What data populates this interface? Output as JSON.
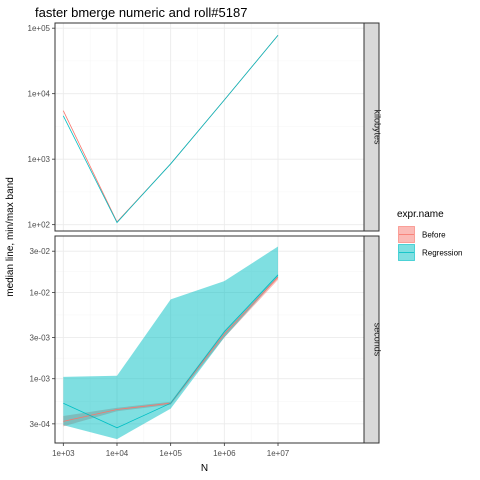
{
  "chart_data": {
    "type": "line",
    "title": "faster bmerge numeric and roll#5187",
    "xlabel": "N",
    "ylabel": "median line, min/max band",
    "x_scale": "log10",
    "x_ticks": [
      1000,
      10000,
      100000,
      1000000,
      10000000
    ],
    "x_tick_labels": [
      "1e+03",
      "1e+04",
      "1e+05",
      "1e+06",
      "1e+07"
    ],
    "xlim": [
      700,
      400000000
    ],
    "legend": {
      "title": "expr.name",
      "position": "right",
      "entries": [
        {
          "name": "Before",
          "color": "#F8766D"
        },
        {
          "name": "Regression",
          "color": "#00BFC4"
        }
      ]
    },
    "facets": [
      {
        "strip": "kilobytes",
        "y_scale": "log10",
        "ylim": [
          80,
          120000
        ],
        "y_ticks": [
          100,
          1000,
          10000,
          100000
        ],
        "y_tick_labels": [
          "1e+02",
          "1e+03",
          "1e+04",
          "1e+05"
        ],
        "series": [
          {
            "name": "Before",
            "x": [
              1000,
              10000,
              100000,
              1000000,
              10000000
            ],
            "median": [
              5500,
              110,
              850,
              8000,
              78000
            ],
            "min": [
              5500,
              110,
              850,
              8000,
              78000
            ],
            "max": [
              5500,
              110,
              850,
              8000,
              78000
            ]
          },
          {
            "name": "Regression",
            "x": [
              1000,
              10000,
              100000,
              1000000,
              10000000
            ],
            "median": [
              4600,
              108,
              850,
              8000,
              78000
            ],
            "min": [
              4600,
              108,
              850,
              8000,
              78000
            ],
            "max": [
              4600,
              108,
              850,
              8000,
              78000
            ]
          }
        ]
      },
      {
        "strip": "seconds",
        "y_scale": "log10",
        "ylim": [
          0.00018,
          0.045
        ],
        "y_ticks": [
          0.0003,
          0.001,
          0.003,
          0.01,
          0.03
        ],
        "y_tick_labels": [
          "3e-04",
          "1e-03",
          "3e-03",
          "1e-02",
          "3e-02"
        ],
        "series": [
          {
            "name": "Before",
            "x": [
              1000,
              10000,
              100000,
              1000000,
              10000000
            ],
            "median": [
              0.00032,
              0.00044,
              0.00052,
              0.0033,
              0.015
            ],
            "min": [
              0.00028,
              0.00042,
              0.0005,
              0.003,
              0.014
            ],
            "max": [
              0.00037,
              0.00046,
              0.00054,
              0.0036,
              0.016
            ]
          },
          {
            "name": "Regression",
            "x": [
              1000,
              10000,
              100000,
              1000000,
              10000000
            ],
            "median": [
              0.00052,
              0.00027,
              0.00052,
              0.0035,
              0.016
            ],
            "min": [
              0.00029,
              0.0002,
              0.00045,
              0.003,
              0.015
            ],
            "max": [
              0.00105,
              0.00108,
              0.0083,
              0.0135,
              0.034
            ]
          }
        ]
      }
    ]
  }
}
